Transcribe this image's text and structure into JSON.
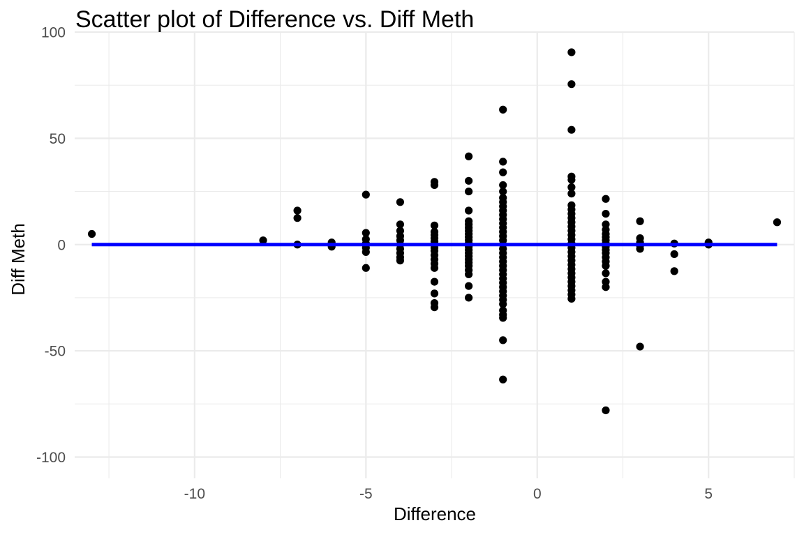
{
  "chart_data": {
    "type": "scatter",
    "title": "Scatter plot of Difference vs. Diff Meth",
    "xlabel": "Difference",
    "ylabel": "Diff Meth",
    "xlim": [
      -13.5,
      7.5
    ],
    "ylim": [
      -110,
      100
    ],
    "x_ticks": [
      -10,
      -5,
      0,
      5
    ],
    "x_tick_labels": [
      "-10",
      "-5",
      "0",
      "5"
    ],
    "y_ticks": [
      -100,
      -50,
      0,
      50,
      100
    ],
    "y_tick_labels": [
      "-100",
      "-50",
      "0",
      "50",
      "100"
    ],
    "grid": true,
    "legend": "none",
    "colors": {
      "points": "#000000",
      "fit_line": "#0000ff",
      "grid": "#ebebeb",
      "tick_text": "#4d4d4d"
    },
    "fit_line": {
      "x": [
        -13,
        7
      ],
      "y": [
        0,
        0
      ]
    },
    "points": [
      {
        "x": -13,
        "y": 5
      },
      {
        "x": -8,
        "y": 2
      },
      {
        "x": -7,
        "y": 16
      },
      {
        "x": -7,
        "y": 12.5
      },
      {
        "x": -7,
        "y": 0
      },
      {
        "x": -6,
        "y": 1
      },
      {
        "x": -6,
        "y": 0
      },
      {
        "x": -6,
        "y": -1
      },
      {
        "x": -5,
        "y": 23.5
      },
      {
        "x": -5,
        "y": 5.5
      },
      {
        "x": -5,
        "y": 2.5
      },
      {
        "x": -5,
        "y": 0.5
      },
      {
        "x": -5,
        "y": -1.5
      },
      {
        "x": -5,
        "y": -3.5
      },
      {
        "x": -5,
        "y": -11
      },
      {
        "x": -4,
        "y": 20
      },
      {
        "x": -4,
        "y": 9.5
      },
      {
        "x": -4,
        "y": 6.5
      },
      {
        "x": -4,
        "y": 4
      },
      {
        "x": -4,
        "y": 2
      },
      {
        "x": -4,
        "y": 0
      },
      {
        "x": -4,
        "y": -2
      },
      {
        "x": -4,
        "y": -4
      },
      {
        "x": -4,
        "y": -6
      },
      {
        "x": -4,
        "y": -7.5
      },
      {
        "x": -3,
        "y": 29.5
      },
      {
        "x": -3,
        "y": 28
      },
      {
        "x": -3,
        "y": 9
      },
      {
        "x": -3,
        "y": 6
      },
      {
        "x": -3,
        "y": 4.5
      },
      {
        "x": -3,
        "y": 3
      },
      {
        "x": -3,
        "y": 1.5
      },
      {
        "x": -3,
        "y": 0
      },
      {
        "x": -3,
        "y": -1.5
      },
      {
        "x": -3,
        "y": -3
      },
      {
        "x": -3,
        "y": -5
      },
      {
        "x": -3,
        "y": -7
      },
      {
        "x": -3,
        "y": -9
      },
      {
        "x": -3,
        "y": -11
      },
      {
        "x": -3,
        "y": -17.5
      },
      {
        "x": -3,
        "y": -23
      },
      {
        "x": -3,
        "y": -27.5
      },
      {
        "x": -3,
        "y": -29.5
      },
      {
        "x": -2,
        "y": 41.5
      },
      {
        "x": -2,
        "y": 30
      },
      {
        "x": -2,
        "y": 25
      },
      {
        "x": -2,
        "y": 16
      },
      {
        "x": -2,
        "y": 11
      },
      {
        "x": -2,
        "y": 9.5
      },
      {
        "x": -2,
        "y": 8
      },
      {
        "x": -2,
        "y": 6.5
      },
      {
        "x": -2,
        "y": 5
      },
      {
        "x": -2,
        "y": 3.5
      },
      {
        "x": -2,
        "y": 2
      },
      {
        "x": -2,
        "y": 0.5
      },
      {
        "x": -2,
        "y": -1
      },
      {
        "x": -2,
        "y": -2.5
      },
      {
        "x": -2,
        "y": -4
      },
      {
        "x": -2,
        "y": -5.5
      },
      {
        "x": -2,
        "y": -7
      },
      {
        "x": -2,
        "y": -8.5
      },
      {
        "x": -2,
        "y": -10
      },
      {
        "x": -2,
        "y": -12
      },
      {
        "x": -2,
        "y": -14
      },
      {
        "x": -2,
        "y": -19.5
      },
      {
        "x": -2,
        "y": -25
      },
      {
        "x": -1,
        "y": 63.5
      },
      {
        "x": -1,
        "y": 39
      },
      {
        "x": -1,
        "y": 34
      },
      {
        "x": -1,
        "y": 28
      },
      {
        "x": -1,
        "y": 25
      },
      {
        "x": -1,
        "y": 22
      },
      {
        "x": -1,
        "y": 20
      },
      {
        "x": -1,
        "y": 18
      },
      {
        "x": -1,
        "y": 16
      },
      {
        "x": -1,
        "y": 14
      },
      {
        "x": -1,
        "y": 12
      },
      {
        "x": -1,
        "y": 10
      },
      {
        "x": -1,
        "y": 8
      },
      {
        "x": -1,
        "y": 6
      },
      {
        "x": -1,
        "y": 4
      },
      {
        "x": -1,
        "y": 2
      },
      {
        "x": -1,
        "y": 0
      },
      {
        "x": -1,
        "y": -2
      },
      {
        "x": -1,
        "y": -4
      },
      {
        "x": -1,
        "y": -6
      },
      {
        "x": -1,
        "y": -8
      },
      {
        "x": -1,
        "y": -10
      },
      {
        "x": -1,
        "y": -12
      },
      {
        "x": -1,
        "y": -14
      },
      {
        "x": -1,
        "y": -16
      },
      {
        "x": -1,
        "y": -18
      },
      {
        "x": -1,
        "y": -20
      },
      {
        "x": -1,
        "y": -22
      },
      {
        "x": -1,
        "y": -24
      },
      {
        "x": -1,
        "y": -26
      },
      {
        "x": -1,
        "y": -28
      },
      {
        "x": -1,
        "y": -31
      },
      {
        "x": -1,
        "y": -33
      },
      {
        "x": -1,
        "y": -34.5
      },
      {
        "x": -1,
        "y": -45
      },
      {
        "x": -1,
        "y": -63.5
      },
      {
        "x": 1,
        "y": 90.5
      },
      {
        "x": 1,
        "y": 75.5
      },
      {
        "x": 1,
        "y": 54
      },
      {
        "x": 1,
        "y": 32
      },
      {
        "x": 1,
        "y": 30.5
      },
      {
        "x": 1,
        "y": 27
      },
      {
        "x": 1,
        "y": 24
      },
      {
        "x": 1,
        "y": 18.5
      },
      {
        "x": 1,
        "y": 16.5
      },
      {
        "x": 1,
        "y": 14.5
      },
      {
        "x": 1,
        "y": 12.5
      },
      {
        "x": 1,
        "y": 10.5
      },
      {
        "x": 1,
        "y": 8.5
      },
      {
        "x": 1,
        "y": 6.5
      },
      {
        "x": 1,
        "y": 4.5
      },
      {
        "x": 1,
        "y": 2.5
      },
      {
        "x": 1,
        "y": 0.5
      },
      {
        "x": 1,
        "y": -1.5
      },
      {
        "x": 1,
        "y": -3.5
      },
      {
        "x": 1,
        "y": -5.5
      },
      {
        "x": 1,
        "y": -7.5
      },
      {
        "x": 1,
        "y": -9.5
      },
      {
        "x": 1,
        "y": -11.5
      },
      {
        "x": 1,
        "y": -13.5
      },
      {
        "x": 1,
        "y": -15.5
      },
      {
        "x": 1,
        "y": -17.5
      },
      {
        "x": 1,
        "y": -19.5
      },
      {
        "x": 1,
        "y": -21.5
      },
      {
        "x": 1,
        "y": -23.5
      },
      {
        "x": 1,
        "y": -25.5
      },
      {
        "x": 2,
        "y": 21.5
      },
      {
        "x": 2,
        "y": 14.5
      },
      {
        "x": 2,
        "y": 9.5
      },
      {
        "x": 2,
        "y": 7
      },
      {
        "x": 2,
        "y": 5
      },
      {
        "x": 2,
        "y": 3.5
      },
      {
        "x": 2,
        "y": 2
      },
      {
        "x": 2,
        "y": 0.5
      },
      {
        "x": 2,
        "y": -1
      },
      {
        "x": 2,
        "y": -2.5
      },
      {
        "x": 2,
        "y": -4
      },
      {
        "x": 2,
        "y": -6
      },
      {
        "x": 2,
        "y": -8
      },
      {
        "x": 2,
        "y": -10
      },
      {
        "x": 2,
        "y": -13.5
      },
      {
        "x": 2,
        "y": -17.5
      },
      {
        "x": 2,
        "y": -20
      },
      {
        "x": 2,
        "y": -78
      },
      {
        "x": 3,
        "y": 11
      },
      {
        "x": 3,
        "y": 3
      },
      {
        "x": 3,
        "y": 1
      },
      {
        "x": 3,
        "y": -0.5
      },
      {
        "x": 3,
        "y": -2
      },
      {
        "x": 3,
        "y": -48
      },
      {
        "x": 4,
        "y": 0.5
      },
      {
        "x": 4,
        "y": -4.5
      },
      {
        "x": 4,
        "y": -12.5
      },
      {
        "x": 5,
        "y": 1
      },
      {
        "x": 5,
        "y": 0
      },
      {
        "x": 7,
        "y": 10.5
      }
    ]
  }
}
